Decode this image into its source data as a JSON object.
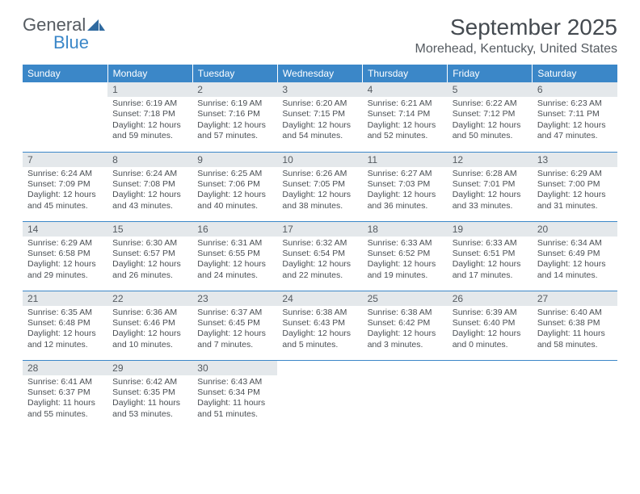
{
  "branding": {
    "word1": "General",
    "word2": "Blue",
    "word1_color": "#555b61",
    "word2_color": "#3b87c8",
    "icon_color": "#2f6aa0"
  },
  "title": "September 2025",
  "location": "Morehead, Kentucky, United States",
  "day_headers": [
    "Sunday",
    "Monday",
    "Tuesday",
    "Wednesday",
    "Thursday",
    "Friday",
    "Saturday"
  ],
  "style": {
    "header_bg": "#3b87c8",
    "header_text": "#ffffff",
    "daynum_bg": "#e4e8eb",
    "daynum_text": "#555b61",
    "border_color": "#3b87c8",
    "body_text": "#4a4f54",
    "title_fontsize": 28,
    "location_fontsize": 16,
    "header_fontsize": 12,
    "cell_fontsize": 10.5
  },
  "weeks": [
    [
      {
        "day": "",
        "lines": []
      },
      {
        "day": "1",
        "lines": [
          "Sunrise: 6:19 AM",
          "Sunset: 7:18 PM",
          "Daylight: 12 hours",
          "and 59 minutes."
        ]
      },
      {
        "day": "2",
        "lines": [
          "Sunrise: 6:19 AM",
          "Sunset: 7:16 PM",
          "Daylight: 12 hours",
          "and 57 minutes."
        ]
      },
      {
        "day": "3",
        "lines": [
          "Sunrise: 6:20 AM",
          "Sunset: 7:15 PM",
          "Daylight: 12 hours",
          "and 54 minutes."
        ]
      },
      {
        "day": "4",
        "lines": [
          "Sunrise: 6:21 AM",
          "Sunset: 7:14 PM",
          "Daylight: 12 hours",
          "and 52 minutes."
        ]
      },
      {
        "day": "5",
        "lines": [
          "Sunrise: 6:22 AM",
          "Sunset: 7:12 PM",
          "Daylight: 12 hours",
          "and 50 minutes."
        ]
      },
      {
        "day": "6",
        "lines": [
          "Sunrise: 6:23 AM",
          "Sunset: 7:11 PM",
          "Daylight: 12 hours",
          "and 47 minutes."
        ]
      }
    ],
    [
      {
        "day": "7",
        "lines": [
          "Sunrise: 6:24 AM",
          "Sunset: 7:09 PM",
          "Daylight: 12 hours",
          "and 45 minutes."
        ]
      },
      {
        "day": "8",
        "lines": [
          "Sunrise: 6:24 AM",
          "Sunset: 7:08 PM",
          "Daylight: 12 hours",
          "and 43 minutes."
        ]
      },
      {
        "day": "9",
        "lines": [
          "Sunrise: 6:25 AM",
          "Sunset: 7:06 PM",
          "Daylight: 12 hours",
          "and 40 minutes."
        ]
      },
      {
        "day": "10",
        "lines": [
          "Sunrise: 6:26 AM",
          "Sunset: 7:05 PM",
          "Daylight: 12 hours",
          "and 38 minutes."
        ]
      },
      {
        "day": "11",
        "lines": [
          "Sunrise: 6:27 AM",
          "Sunset: 7:03 PM",
          "Daylight: 12 hours",
          "and 36 minutes."
        ]
      },
      {
        "day": "12",
        "lines": [
          "Sunrise: 6:28 AM",
          "Sunset: 7:01 PM",
          "Daylight: 12 hours",
          "and 33 minutes."
        ]
      },
      {
        "day": "13",
        "lines": [
          "Sunrise: 6:29 AM",
          "Sunset: 7:00 PM",
          "Daylight: 12 hours",
          "and 31 minutes."
        ]
      }
    ],
    [
      {
        "day": "14",
        "lines": [
          "Sunrise: 6:29 AM",
          "Sunset: 6:58 PM",
          "Daylight: 12 hours",
          "and 29 minutes."
        ]
      },
      {
        "day": "15",
        "lines": [
          "Sunrise: 6:30 AM",
          "Sunset: 6:57 PM",
          "Daylight: 12 hours",
          "and 26 minutes."
        ]
      },
      {
        "day": "16",
        "lines": [
          "Sunrise: 6:31 AM",
          "Sunset: 6:55 PM",
          "Daylight: 12 hours",
          "and 24 minutes."
        ]
      },
      {
        "day": "17",
        "lines": [
          "Sunrise: 6:32 AM",
          "Sunset: 6:54 PM",
          "Daylight: 12 hours",
          "and 22 minutes."
        ]
      },
      {
        "day": "18",
        "lines": [
          "Sunrise: 6:33 AM",
          "Sunset: 6:52 PM",
          "Daylight: 12 hours",
          "and 19 minutes."
        ]
      },
      {
        "day": "19",
        "lines": [
          "Sunrise: 6:33 AM",
          "Sunset: 6:51 PM",
          "Daylight: 12 hours",
          "and 17 minutes."
        ]
      },
      {
        "day": "20",
        "lines": [
          "Sunrise: 6:34 AM",
          "Sunset: 6:49 PM",
          "Daylight: 12 hours",
          "and 14 minutes."
        ]
      }
    ],
    [
      {
        "day": "21",
        "lines": [
          "Sunrise: 6:35 AM",
          "Sunset: 6:48 PM",
          "Daylight: 12 hours",
          "and 12 minutes."
        ]
      },
      {
        "day": "22",
        "lines": [
          "Sunrise: 6:36 AM",
          "Sunset: 6:46 PM",
          "Daylight: 12 hours",
          "and 10 minutes."
        ]
      },
      {
        "day": "23",
        "lines": [
          "Sunrise: 6:37 AM",
          "Sunset: 6:45 PM",
          "Daylight: 12 hours",
          "and 7 minutes."
        ]
      },
      {
        "day": "24",
        "lines": [
          "Sunrise: 6:38 AM",
          "Sunset: 6:43 PM",
          "Daylight: 12 hours",
          "and 5 minutes."
        ]
      },
      {
        "day": "25",
        "lines": [
          "Sunrise: 6:38 AM",
          "Sunset: 6:42 PM",
          "Daylight: 12 hours",
          "and 3 minutes."
        ]
      },
      {
        "day": "26",
        "lines": [
          "Sunrise: 6:39 AM",
          "Sunset: 6:40 PM",
          "Daylight: 12 hours",
          "and 0 minutes."
        ]
      },
      {
        "day": "27",
        "lines": [
          "Sunrise: 6:40 AM",
          "Sunset: 6:38 PM",
          "Daylight: 11 hours",
          "and 58 minutes."
        ]
      }
    ],
    [
      {
        "day": "28",
        "lines": [
          "Sunrise: 6:41 AM",
          "Sunset: 6:37 PM",
          "Daylight: 11 hours",
          "and 55 minutes."
        ]
      },
      {
        "day": "29",
        "lines": [
          "Sunrise: 6:42 AM",
          "Sunset: 6:35 PM",
          "Daylight: 11 hours",
          "and 53 minutes."
        ]
      },
      {
        "day": "30",
        "lines": [
          "Sunrise: 6:43 AM",
          "Sunset: 6:34 PM",
          "Daylight: 11 hours",
          "and 51 minutes."
        ]
      },
      {
        "day": "",
        "lines": []
      },
      {
        "day": "",
        "lines": []
      },
      {
        "day": "",
        "lines": []
      },
      {
        "day": "",
        "lines": []
      }
    ]
  ]
}
